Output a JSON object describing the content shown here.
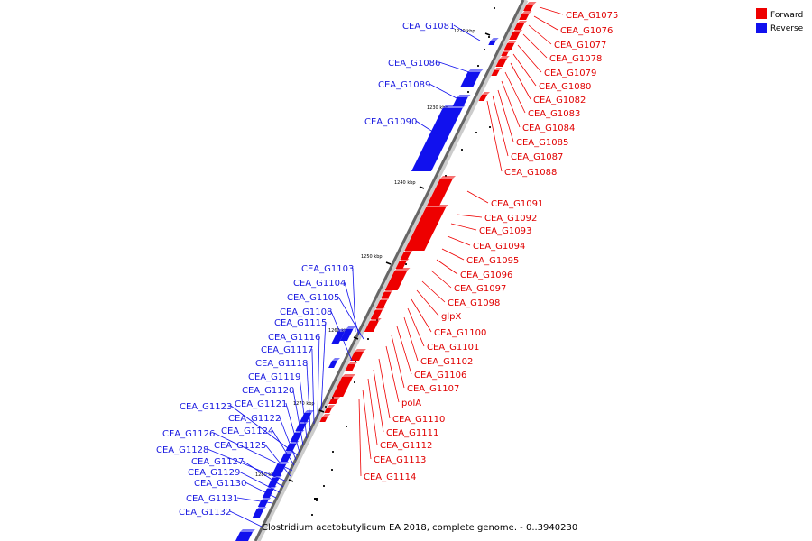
{
  "legend": {
    "forward_label": "Forward",
    "reverse_label": "Reverse",
    "forward_color": "#ee0000",
    "reverse_color": "#1111ee"
  },
  "caption": "Clostridium acetobutylicum EA 2018, complete genome. - 0..3940230",
  "ticks": [
    "1220 kbp",
    "1230 kbp",
    "1240 kbp",
    "1250 kbp",
    "1260 kbp",
    "1270 kbp",
    "1280 kbp"
  ],
  "forward_genes": [
    "CEA_G1075",
    "CEA_G1076",
    "CEA_G1077",
    "CEA_G1078",
    "CEA_G1079",
    "CEA_G1080",
    "CEA_G1082",
    "CEA_G1083",
    "CEA_G1084",
    "CEA_G1085",
    "CEA_G1087",
    "CEA_G1088",
    "CEA_G1091",
    "CEA_G1092",
    "CEA_G1093",
    "CEA_G1094",
    "CEA_G1095",
    "CEA_G1096",
    "CEA_G1097",
    "CEA_G1098",
    "glpX",
    "CEA_G1100",
    "CEA_G1101",
    "CEA_G1102",
    "CEA_G1106",
    "CEA_G1107",
    "polA",
    "CEA_G1110",
    "CEA_G1111",
    "CEA_G1112",
    "CEA_G1113",
    "CEA_G1114"
  ],
  "reverse_genes": [
    "CEA_G1081",
    "CEA_G1086",
    "CEA_G1089",
    "CEA_G1090",
    "CEA_G1103",
    "CEA_G1104",
    "CEA_G1105",
    "CEA_G1108",
    "CEA_G1115",
    "CEA_G1116",
    "CEA_G1117",
    "CEA_G1118",
    "CEA_G1119",
    "CEA_G1120",
    "CEA_G1121",
    "CEA_G1123",
    "CEA_G1122",
    "CEA_G1124",
    "CEA_G1126",
    "CEA_G1125",
    "CEA_G1128",
    "CEA_G1127",
    "CEA_G1129",
    "CEA_G1130",
    "CEA_G1131",
    "CEA_G1132"
  ]
}
